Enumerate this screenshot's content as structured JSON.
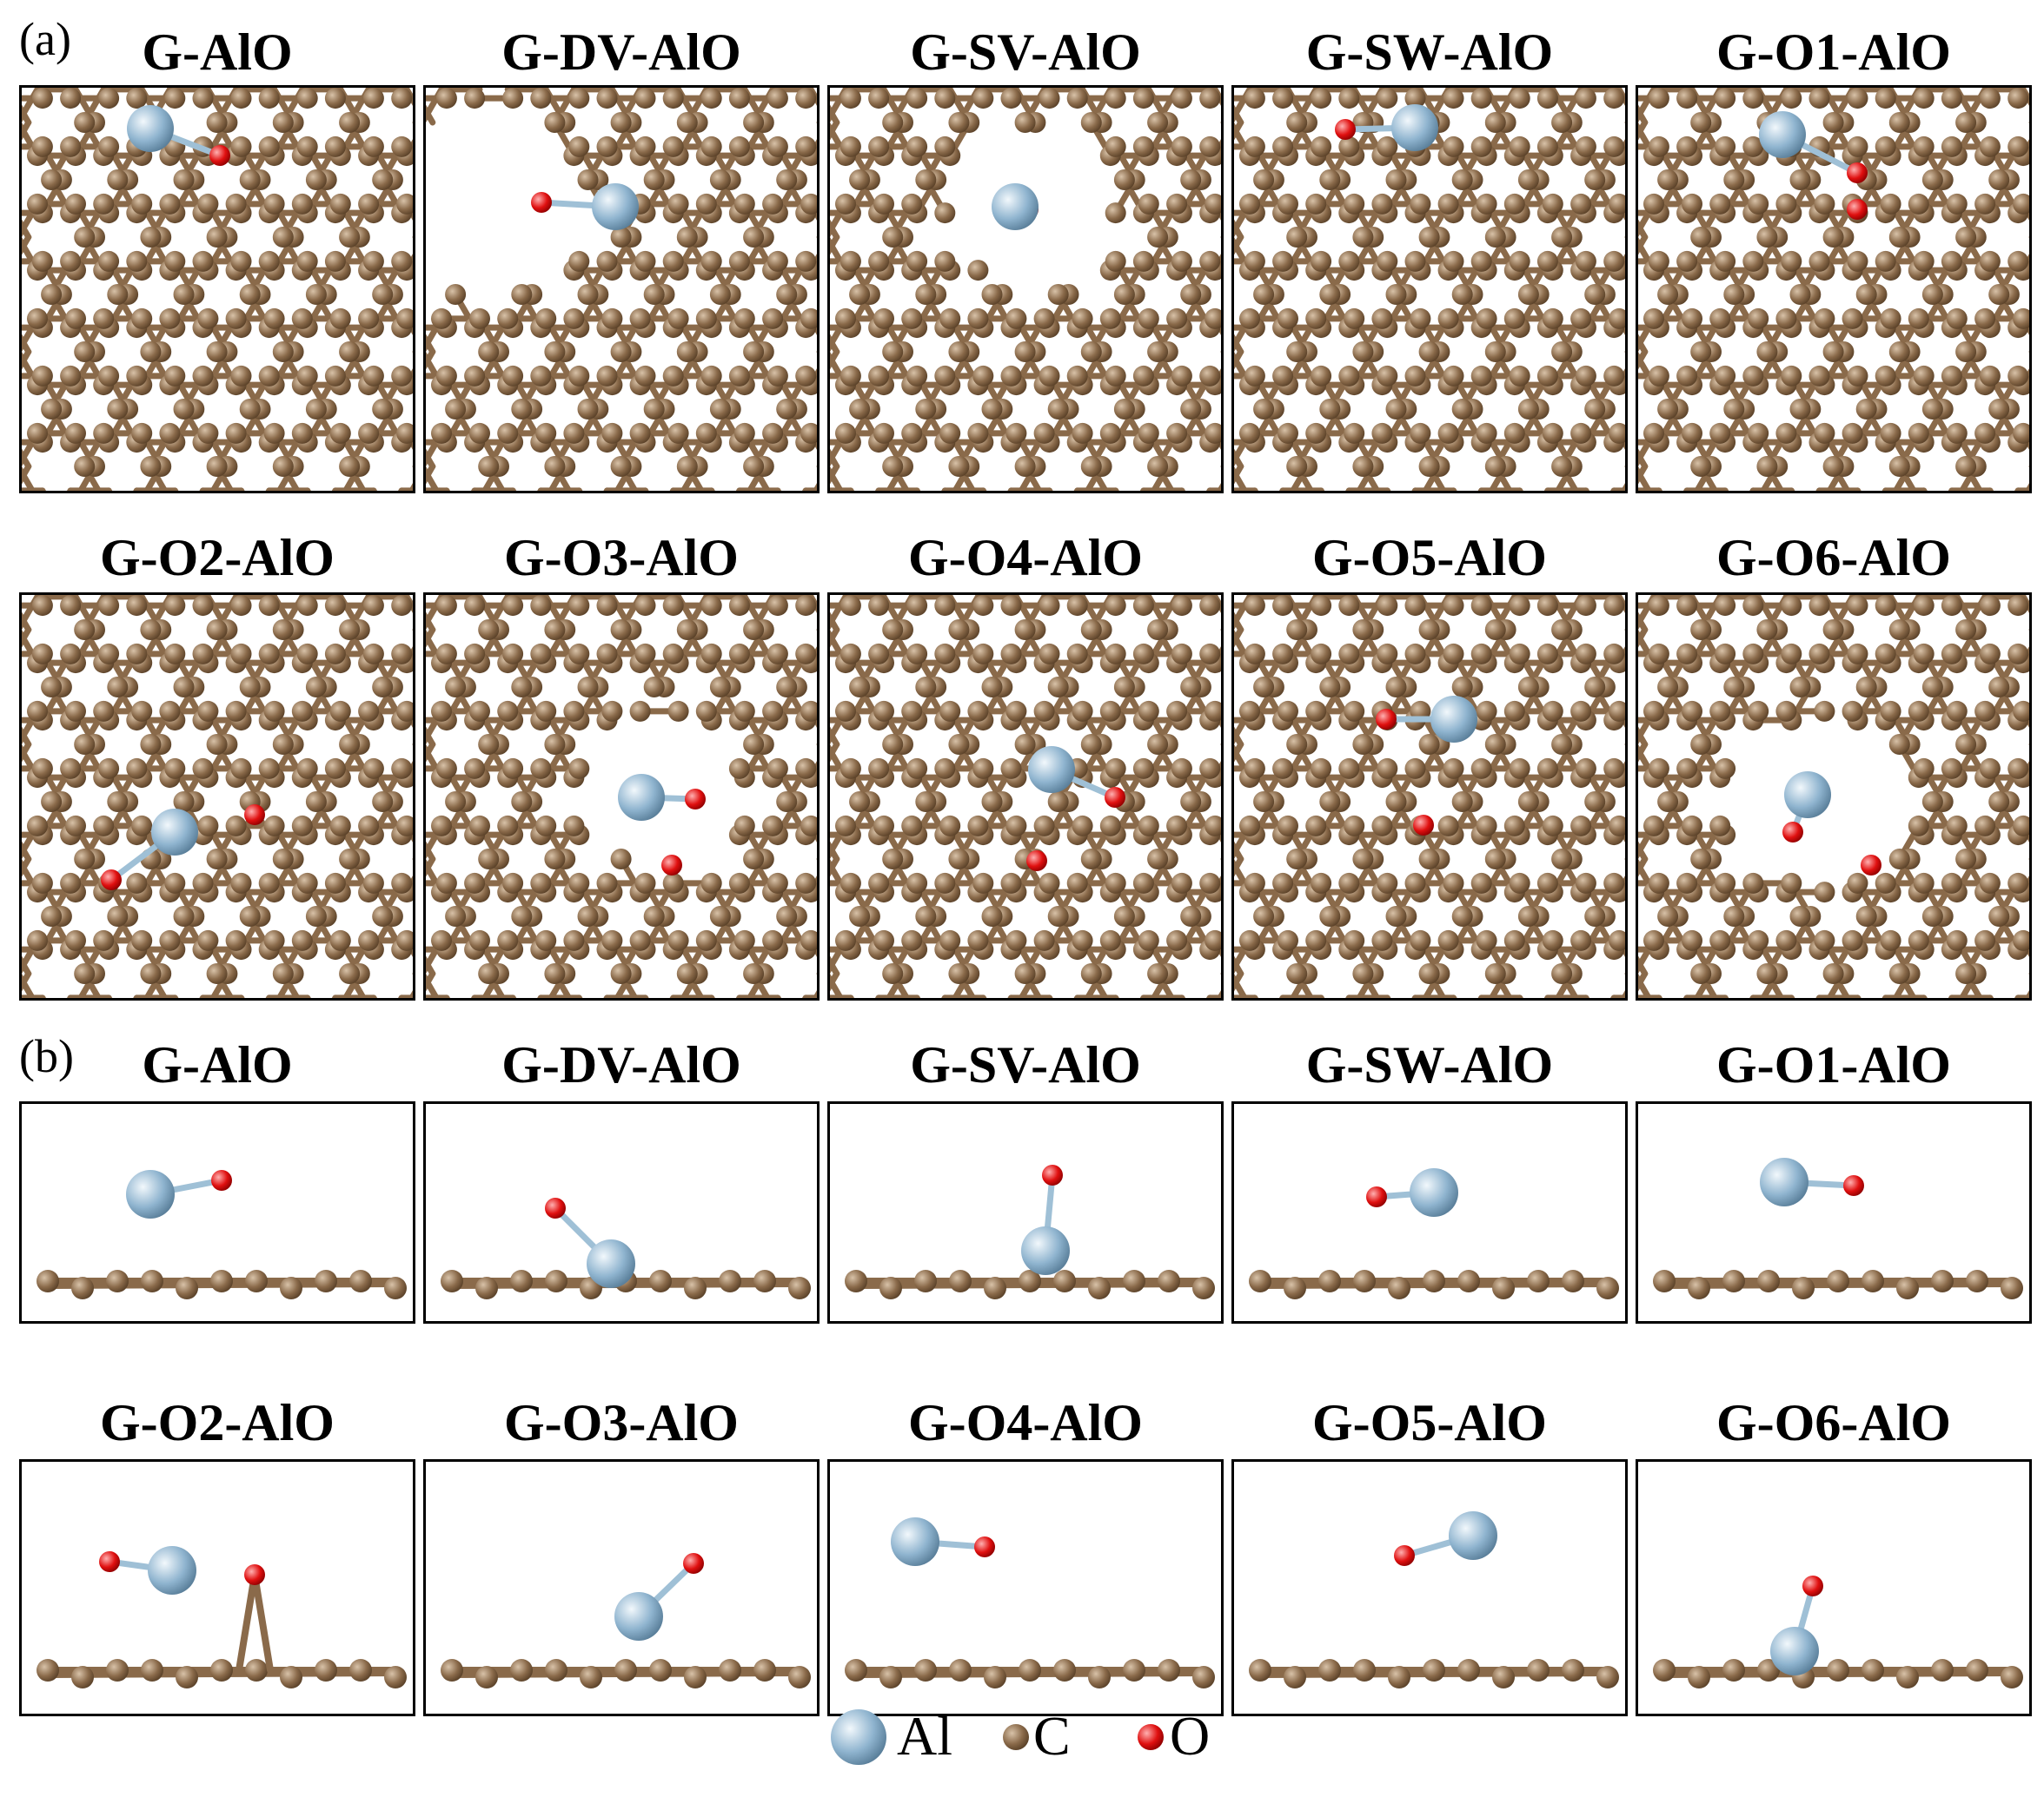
{
  "figure": {
    "section_a_label": "(a)",
    "section_b_label": "(b)",
    "top_view_titles": [
      "G-AlO",
      "G-DV-AlO",
      "G-SV-AlO",
      "G-SW-AlO",
      "G-O1-AlO",
      "G-O2-AlO",
      "G-O3-AlO",
      "G-O4-AlO",
      "G-O5-AlO",
      "G-O6-AlO"
    ],
    "side_view_titles": [
      "G-AlO",
      "G-DV-AlO",
      "G-SV-AlO",
      "G-SW-AlO",
      "G-O1-AlO",
      "G-O2-AlO",
      "G-O3-AlO",
      "G-O4-AlO",
      "G-O5-AlO",
      "G-O6-AlO"
    ]
  },
  "legend": {
    "items": [
      {
        "label": "Al",
        "color": "#8fb4cf"
      },
      {
        "label": "C",
        "color": "#8a6a4a"
      },
      {
        "label": "O",
        "color": "#e01010"
      }
    ]
  },
  "colors": {
    "carbon": "#8a6a4a",
    "aluminum": "#8fb4cf",
    "oxygen": "#e01010",
    "bond_al_o": "#9fc0d6"
  }
}
